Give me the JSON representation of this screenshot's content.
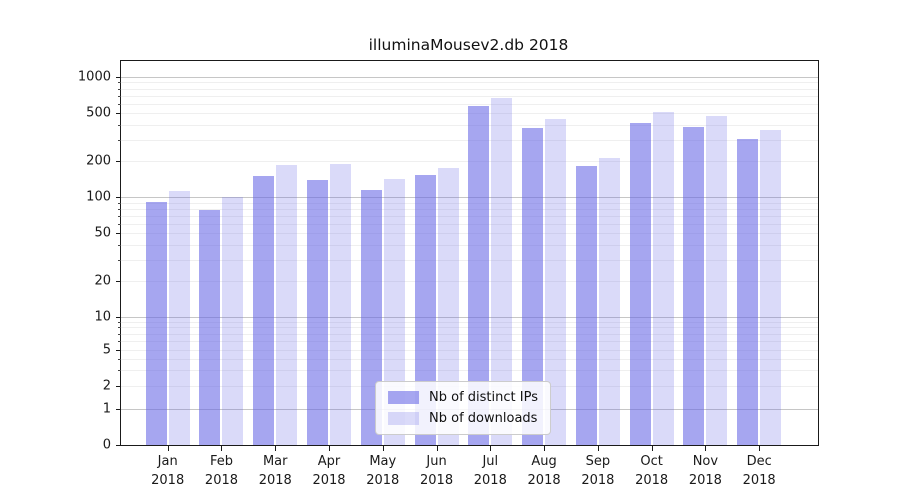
{
  "title": "illuminaMousev2.db 2018",
  "chart_data": {
    "type": "bar",
    "title": "illuminaMousev2.db 2018",
    "categories": [
      "Jan 2018",
      "Feb 2018",
      "Mar 2018",
      "Apr 2018",
      "May 2018",
      "Jun 2018",
      "Jul 2018",
      "Aug 2018",
      "Sep 2018",
      "Oct 2018",
      "Nov 2018",
      "Dec 2018"
    ],
    "series": [
      {
        "name": "Nb of distinct IPs",
        "color": "rgba(102,102,230,0.58)",
        "values": [
          92,
          78,
          149,
          139,
          116,
          154,
          570,
          374,
          182,
          415,
          385,
          305
        ]
      },
      {
        "name": "Nb of downloads",
        "color": "rgba(102,102,230,0.24)",
        "values": [
          113,
          100,
          184,
          189,
          143,
          176,
          665,
          443,
          214,
          515,
          476,
          360
        ]
      }
    ],
    "xlabel": "",
    "ylabel": "",
    "yscale": "symlog",
    "y_ticks": [
      0,
      1,
      2,
      5,
      10,
      20,
      50,
      100,
      200,
      500,
      1000
    ],
    "ylim": [
      0,
      1400
    ],
    "grid": "on",
    "legend_position": "lower center",
    "colors": {
      "bar_base": "#6666e6",
      "grid_major": "#c6c6c6",
      "grid_minor": "#efefef",
      "frame": "#1a1a1a"
    }
  },
  "legend": {
    "items": [
      {
        "label": "Nb of distinct IPs"
      },
      {
        "label": "Nb of downloads"
      }
    ]
  }
}
